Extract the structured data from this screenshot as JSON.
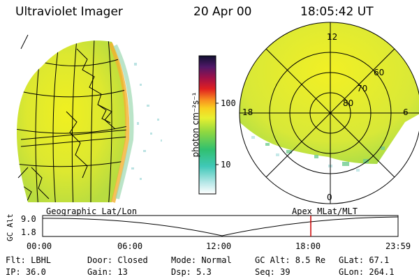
{
  "header": {
    "title": "Ultraviolet Imager",
    "date": "20 Apr 00",
    "time": "18:05:42 UT"
  },
  "colorbar": {
    "unit_label": "photon cm⁻²s⁻¹",
    "ticks": [
      "100",
      "10"
    ]
  },
  "polar_plot": {
    "mlt_labels": {
      "top": "12",
      "left": "18",
      "right": "6",
      "bottom": "0"
    },
    "lat_labels": [
      "60",
      "70",
      "80"
    ]
  },
  "timeline": {
    "left_label": "Geographic Lat/Lon",
    "right_label": "Apex MLat/MLT",
    "yaxis_title": "GC Alt",
    "y_ticks": [
      "9.0",
      "1.8"
    ],
    "x_ticks": [
      "00:00",
      "06:00",
      "12:00",
      "18:00",
      "23:59"
    ],
    "marker_time": "18:05:42",
    "marker_color": "#cc0000"
  },
  "info": {
    "flt": "Flt: LBHL",
    "ip": "IP: 36.0",
    "door": "Door: Closed",
    "gain": "Gain: 13",
    "mode": "Mode: Normal",
    "dsp": "Dsp:    5.3",
    "gcalt": "GC Alt: 8.5 Re",
    "seq": "Seq: 39",
    "glat": "GLat:  67.1",
    "glon": "GLon: 264.1"
  }
}
